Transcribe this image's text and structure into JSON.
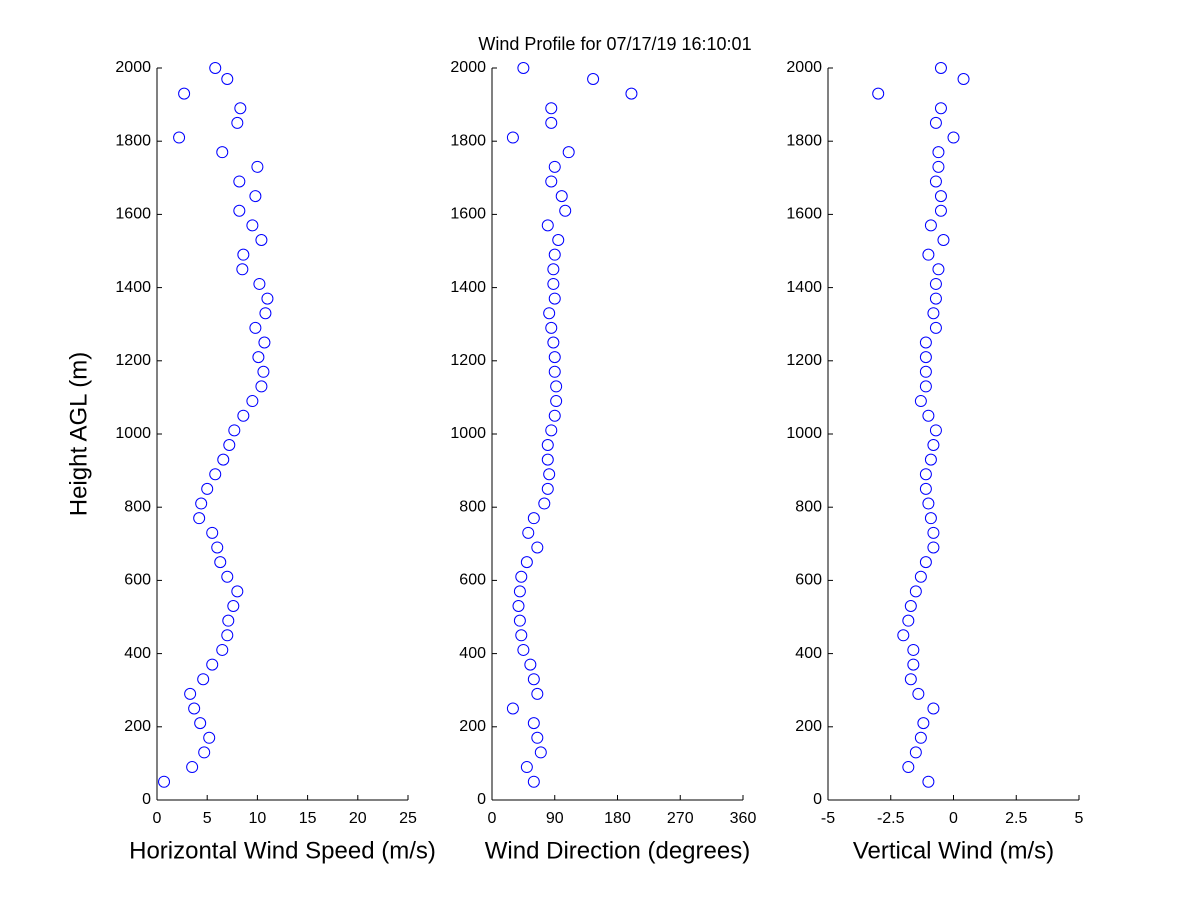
{
  "chart_data": [
    {
      "type": "scatter",
      "title": "Wind Profile for  07/17/19 16:10:01",
      "x_label": "Horizontal Wind Speed (m/s)",
      "y_label": "Height AGL (m)",
      "color": "#0000ff",
      "xlim": [
        0,
        25
      ],
      "xticks": [
        0,
        5,
        10,
        15,
        20,
        25
      ],
      "ylim": [
        0,
        2000
      ],
      "yticks": [
        0,
        200,
        400,
        600,
        800,
        1000,
        1200,
        1400,
        1600,
        1800,
        2000
      ],
      "x": [
        0.7,
        3.5,
        4.7,
        5.2,
        4.3,
        3.7,
        3.3,
        4.6,
        5.5,
        6.5,
        7,
        7.1,
        7.6,
        8,
        7,
        6.3,
        6,
        5.5,
        4.2,
        4.4,
        5,
        5.8,
        6.6,
        7.2,
        7.7,
        8.6,
        9.5,
        10.4,
        10.6,
        10.1,
        10.7,
        9.8,
        10.8,
        11,
        10.2,
        8.5,
        8.6,
        10.4,
        9.5,
        8.2,
        9.8,
        8.2,
        10,
        6.5,
        2.2,
        8,
        8.3,
        2.7,
        7,
        5.8
      ],
      "y": [
        50,
        90,
        130,
        170,
        210,
        250,
        290,
        330,
        370,
        410,
        450,
        490,
        530,
        570,
        610,
        650,
        690,
        730,
        770,
        810,
        850,
        890,
        930,
        970,
        1010,
        1050,
        1090,
        1130,
        1170,
        1210,
        1250,
        1290,
        1330,
        1370,
        1410,
        1450,
        1490,
        1530,
        1570,
        1610,
        1650,
        1690,
        1730,
        1770,
        1810,
        1850,
        1890,
        1930,
        1970,
        2000
      ]
    },
    {
      "type": "scatter",
      "x_label": "Wind Direction (degrees)",
      "color": "#0000ff",
      "xlim": [
        0,
        360
      ],
      "xticks": [
        0,
        90,
        180,
        270,
        360
      ],
      "ylim": [
        0,
        2000
      ],
      "yticks": [
        0,
        200,
        400,
        600,
        800,
        1000,
        1200,
        1400,
        1600,
        1800,
        2000
      ],
      "x": [
        60,
        50,
        70,
        65,
        60,
        30,
        65,
        60,
        55,
        45,
        42,
        40,
        38,
        40,
        42,
        50,
        65,
        52,
        60,
        75,
        80,
        82,
        80,
        80,
        85,
        90,
        92,
        92,
        90,
        90,
        88,
        85,
        82,
        90,
        88,
        88,
        90,
        95,
        80,
        105,
        100,
        85,
        90,
        110,
        30,
        85,
        85,
        200,
        145,
        45
      ],
      "y": [
        50,
        90,
        130,
        170,
        210,
        250,
        290,
        330,
        370,
        410,
        450,
        490,
        530,
        570,
        610,
        650,
        690,
        730,
        770,
        810,
        850,
        890,
        930,
        970,
        1010,
        1050,
        1090,
        1130,
        1170,
        1210,
        1250,
        1290,
        1330,
        1370,
        1410,
        1450,
        1490,
        1530,
        1570,
        1610,
        1650,
        1690,
        1730,
        1770,
        1810,
        1850,
        1890,
        1930,
        1970,
        2000
      ]
    },
    {
      "type": "scatter",
      "x_label": "Vertical Wind (m/s)",
      "color": "#0000ff",
      "xlim": [
        -5,
        5
      ],
      "xticks": [
        -5,
        -2.5,
        0,
        2.5,
        5
      ],
      "ylim": [
        0,
        2000
      ],
      "yticks": [
        0,
        200,
        400,
        600,
        800,
        1000,
        1200,
        1400,
        1600,
        1800,
        2000
      ],
      "x": [
        -1,
        -1.8,
        -1.5,
        -1.3,
        -1.2,
        -0.8,
        -1.4,
        -1.7,
        -1.6,
        -1.6,
        -2,
        -1.8,
        -1.7,
        -1.5,
        -1.3,
        -1.1,
        -0.8,
        -0.8,
        -0.9,
        -1,
        -1.1,
        -1.1,
        -0.9,
        -0.8,
        -0.7,
        -1,
        -1.3,
        -1.1,
        -1.1,
        -1.1,
        -1.1,
        -0.7,
        -0.8,
        -0.7,
        -0.7,
        -0.6,
        -1,
        -0.4,
        -0.9,
        -0.5,
        -0.5,
        -0.7,
        -0.6,
        -0.6,
        0,
        -0.7,
        -0.5,
        -3,
        0.4,
        -0.5
      ],
      "y": [
        50,
        90,
        130,
        170,
        210,
        250,
        290,
        330,
        370,
        410,
        450,
        490,
        530,
        570,
        610,
        650,
        690,
        730,
        770,
        810,
        850,
        890,
        930,
        970,
        1010,
        1050,
        1090,
        1130,
        1170,
        1210,
        1250,
        1290,
        1330,
        1370,
        1410,
        1450,
        1490,
        1530,
        1570,
        1610,
        1650,
        1690,
        1730,
        1770,
        1810,
        1850,
        1890,
        1930,
        1970,
        2000
      ]
    }
  ]
}
